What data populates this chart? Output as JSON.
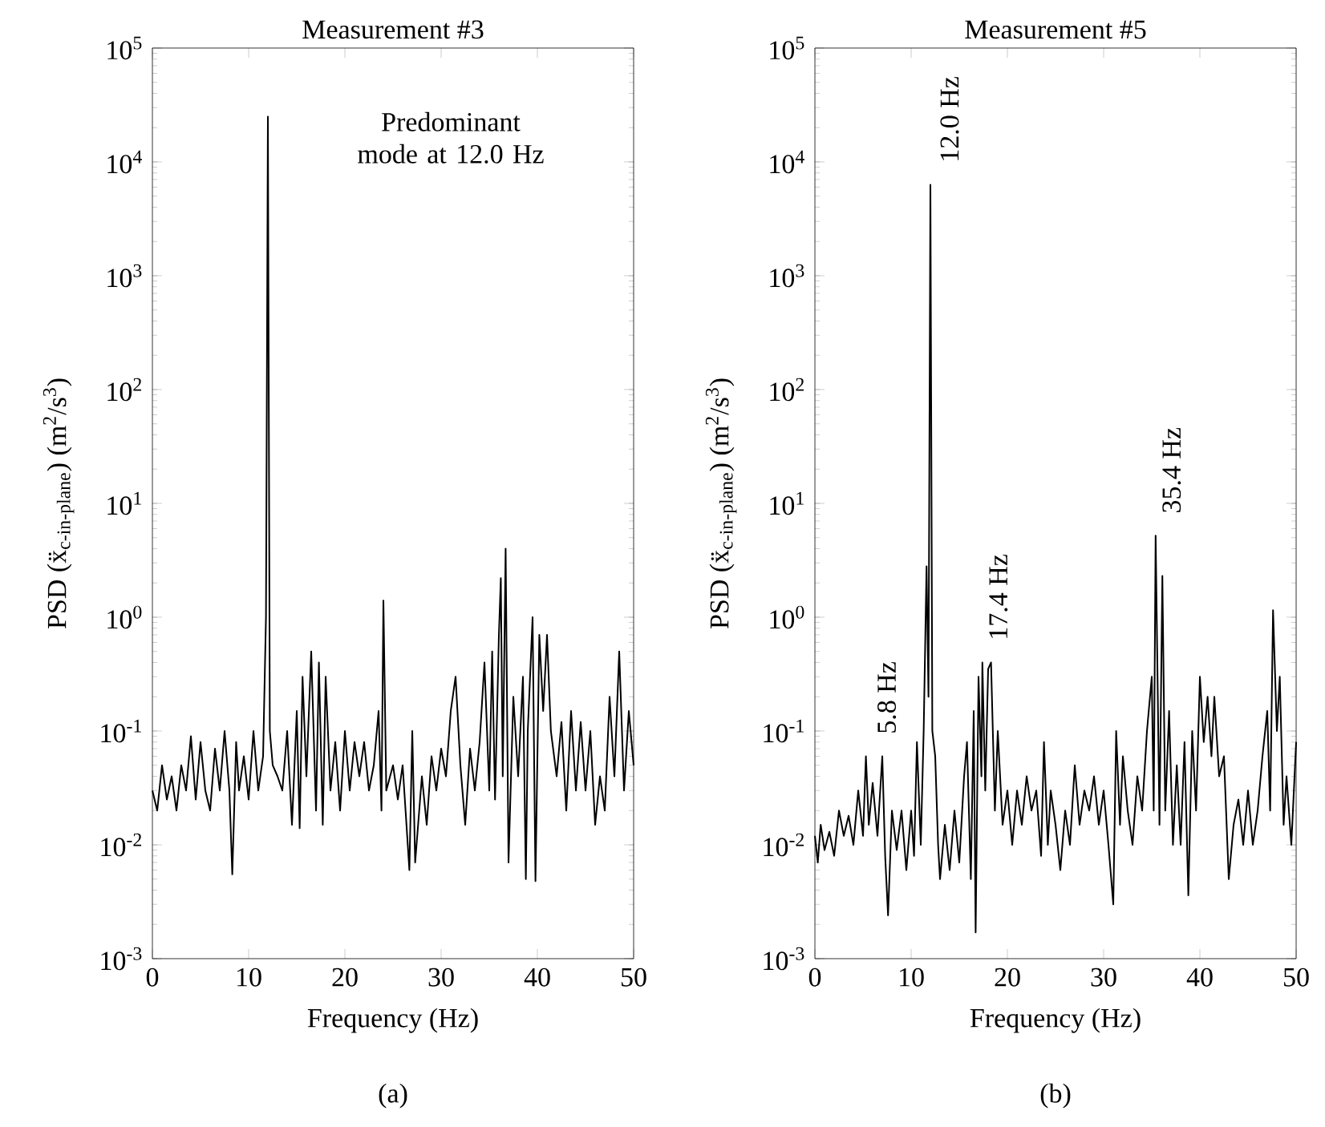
{
  "chart_data": [
    {
      "type": "line",
      "title": "Measurement #3",
      "xlabel": "Frequency (Hz)",
      "ylabel": "PSD (ẍ$_{c-in-plane}$) (m$^{2}$/s$^{3}$)",
      "log": "y",
      "xlim": [
        0,
        50
      ],
      "ylim": [
        0.001,
        100000
      ],
      "xticks": [
        0,
        10,
        20,
        30,
        40,
        50
      ],
      "yticks": [
        {
          "value": 0.001,
          "label": "10$^{-3}$"
        },
        {
          "value": 0.01,
          "label": "10$^{-2}$"
        },
        {
          "value": 0.1,
          "label": "10$^{-1}$"
        },
        {
          "value": 1,
          "label": "10$^{0}$"
        },
        {
          "value": 10,
          "label": "10$^{1}$"
        },
        {
          "value": 100,
          "label": "10$^{2}$"
        },
        {
          "value": 1000,
          "label": "10$^{3}$"
        },
        {
          "value": 10000,
          "label": "10$^{4}$"
        },
        {
          "value": 100000,
          "label": "10$^{5}$"
        }
      ],
      "x": [
        0,
        0.5,
        1,
        1.5,
        2,
        2.5,
        3,
        3.5,
        4,
        4.5,
        5,
        5.5,
        6,
        6.5,
        7,
        7.5,
        8,
        8.3,
        8.7,
        9,
        9.5,
        10,
        10.5,
        11,
        11.5,
        11.8,
        12,
        12.2,
        12.5,
        13,
        13.5,
        14,
        14.5,
        15,
        15.3,
        15.6,
        16,
        16.5,
        17,
        17.3,
        17.7,
        18,
        18.5,
        19,
        19.5,
        20,
        20.5,
        21,
        21.5,
        22,
        22.5,
        23,
        23.5,
        23.8,
        24,
        24.3,
        25,
        25.5,
        26,
        26.7,
        27,
        27.3,
        28,
        28.5,
        29,
        29.5,
        30,
        30.5,
        31,
        31.5,
        32,
        32.5,
        33,
        33.5,
        34,
        34.5,
        35,
        35.3,
        35.6,
        36,
        36.2,
        36.4,
        36.7,
        37,
        37.5,
        38,
        38.5,
        38.8,
        39,
        39.5,
        39.8,
        40.2,
        40.6,
        41,
        41.4,
        42,
        42.5,
        43,
        43.5,
        44,
        44.5,
        45,
        45.5,
        46,
        46.5,
        47,
        47.5,
        48,
        48.5,
        49,
        49.5,
        50
      ],
      "series": [
        {
          "color": "#000000",
          "values": [
            0.03,
            0.02,
            0.05,
            0.025,
            0.04,
            0.02,
            0.05,
            0.03,
            0.09,
            0.025,
            0.08,
            0.03,
            0.02,
            0.07,
            0.03,
            0.1,
            0.03,
            0.0055,
            0.08,
            0.03,
            0.06,
            0.025,
            0.1,
            0.03,
            0.06,
            1.0,
            25000,
            0.1,
            0.05,
            0.04,
            0.03,
            0.1,
            0.015,
            0.15,
            0.014,
            0.3,
            0.04,
            0.5,
            0.02,
            0.4,
            0.015,
            0.3,
            0.03,
            0.08,
            0.02,
            0.1,
            0.03,
            0.08,
            0.04,
            0.08,
            0.03,
            0.05,
            0.15,
            0.02,
            1.4,
            0.03,
            0.05,
            0.025,
            0.05,
            0.006,
            0.1,
            0.007,
            0.04,
            0.015,
            0.06,
            0.03,
            0.07,
            0.04,
            0.15,
            0.3,
            0.05,
            0.015,
            0.07,
            0.03,
            0.08,
            0.4,
            0.03,
            0.5,
            0.025,
            0.7,
            2.2,
            0.04,
            4,
            0.007,
            0.2,
            0.04,
            0.3,
            0.005,
            0.1,
            1.0,
            0.0048,
            0.7,
            0.15,
            0.7,
            0.1,
            0.04,
            0.12,
            0.02,
            0.15,
            0.03,
            0.12,
            0.03,
            0.1,
            0.015,
            0.04,
            0.02,
            0.2,
            0.04,
            0.5,
            0.03,
            0.15,
            0.05
          ]
        }
      ],
      "annotations": [
        "Predominant mode at 12.0 Hz",
        "(a)"
      ]
    },
    {
      "type": "line",
      "title": "Measurement #5",
      "xlabel": "Frequency (Hz)",
      "ylabel": "PSD (ẍ$_{c-in-plane}$) (m$^{2}$/s$^{3}$)",
      "log": "y",
      "xlim": [
        0,
        50
      ],
      "ylim": [
        0.001,
        100000
      ],
      "xticks": [
        0,
        10,
        20,
        30,
        40,
        50
      ],
      "yticks": [
        {
          "value": 0.001,
          "label": "10$^{-3}$"
        },
        {
          "value": 0.01,
          "label": "10$^{-2}$"
        },
        {
          "value": 0.1,
          "label": "10$^{-1}$"
        },
        {
          "value": 1,
          "label": "10$^{0}$"
        },
        {
          "value": 10,
          "label": "10$^{1}$"
        },
        {
          "value": 100,
          "label": "10$^{2}$"
        },
        {
          "value": 1000,
          "label": "10$^{3}$"
        },
        {
          "value": 10000,
          "label": "10$^{4}$"
        },
        {
          "value": 100000,
          "label": "10$^{5}$"
        }
      ],
      "x": [
        0,
        0.3,
        0.6,
        1,
        1.5,
        2,
        2.5,
        3,
        3.5,
        4,
        4.5,
        5,
        5.3,
        5.6,
        6,
        6.5,
        7,
        7.3,
        7.6,
        8,
        8.5,
        9,
        9.5,
        10,
        10.3,
        10.6,
        11,
        11.3,
        11.6,
        11.8,
        12,
        12.2,
        12.5,
        12.8,
        13,
        13.5,
        14,
        14.5,
        15,
        15.5,
        15.8,
        16.2,
        16.5,
        16.7,
        17,
        17.3,
        17.4,
        17.7,
        18,
        18.3,
        18.7,
        19,
        19.5,
        20,
        20.5,
        21,
        21.5,
        22,
        22.5,
        23,
        23.5,
        23.8,
        24.2,
        24.5,
        25,
        25.5,
        26,
        26.5,
        27,
        27.5,
        28,
        28.5,
        29,
        29.5,
        30,
        30.5,
        31,
        31.3,
        31.7,
        32,
        32.5,
        33,
        33.5,
        34,
        34.5,
        35,
        35.2,
        35.4,
        35.6,
        35.8,
        36.1,
        36.4,
        36.8,
        37.2,
        37.6,
        38,
        38.4,
        38.8,
        39.2,
        39.6,
        40,
        40.4,
        40.8,
        41.2,
        41.5,
        42,
        42.5,
        43,
        43.5,
        44,
        44.5,
        45,
        45.5,
        46,
        46.5,
        47,
        47.3,
        47.6,
        48,
        48.3,
        48.7,
        49,
        49.5,
        50
      ],
      "series": [
        {
          "color": "#000000",
          "values": [
            0.012,
            0.007,
            0.015,
            0.009,
            0.013,
            0.008,
            0.02,
            0.012,
            0.018,
            0.01,
            0.03,
            0.012,
            0.06,
            0.015,
            0.035,
            0.012,
            0.06,
            0.008,
            0.0024,
            0.02,
            0.009,
            0.02,
            0.006,
            0.02,
            0.008,
            0.08,
            0.01,
            0.1,
            2.8,
            0.2,
            6300,
            0.1,
            0.06,
            0.01,
            0.005,
            0.015,
            0.006,
            0.02,
            0.007,
            0.04,
            0.08,
            0.005,
            0.15,
            0.0017,
            0.3,
            0.04,
            0.4,
            0.03,
            0.35,
            0.4,
            0.02,
            0.1,
            0.015,
            0.03,
            0.01,
            0.03,
            0.015,
            0.04,
            0.02,
            0.03,
            0.008,
            0.08,
            0.01,
            0.03,
            0.015,
            0.006,
            0.02,
            0.01,
            0.05,
            0.015,
            0.03,
            0.02,
            0.04,
            0.015,
            0.03,
            0.01,
            0.003,
            0.1,
            0.015,
            0.06,
            0.02,
            0.01,
            0.04,
            0.02,
            0.1,
            0.3,
            0.02,
            5.2,
            0.3,
            0.015,
            2.3,
            0.02,
            0.15,
            0.01,
            0.05,
            0.01,
            0.08,
            0.0036,
            0.1,
            0.02,
            0.3,
            0.08,
            0.2,
            0.06,
            0.2,
            0.04,
            0.06,
            0.005,
            0.015,
            0.025,
            0.01,
            0.03,
            0.01,
            0.02,
            0.06,
            0.15,
            0.02,
            1.15,
            0.1,
            0.3,
            0.015,
            0.04,
            0.01,
            0.08
          ]
        }
      ],
      "annotations": [
        {
          "text": "5.8 Hz",
          "x": 5.8,
          "y": 0.06
        },
        {
          "text": "12.0 Hz",
          "x": 12.0,
          "y": 6300
        },
        {
          "text": "17.4 Hz",
          "x": 17.4,
          "y": 0.4
        },
        {
          "text": "35.4 Hz",
          "x": 35.4,
          "y": 5.2
        },
        "(b)"
      ]
    }
  ]
}
